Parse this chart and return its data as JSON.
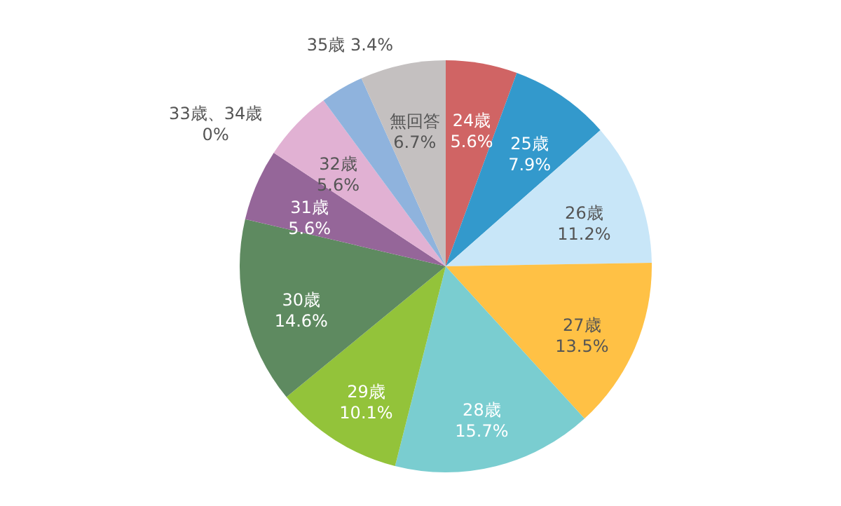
{
  "chart_data": {
    "type": "pie",
    "categories": [
      "24歳",
      "25歳",
      "26歳",
      "27歳",
      "28歳",
      "29歳",
      "30歳",
      "31歳",
      "32歳",
      "33歳、34歳",
      "35歳",
      "無回答"
    ],
    "values": [
      5.6,
      7.9,
      11.2,
      13.5,
      15.7,
      10.1,
      14.6,
      5.6,
      5.6,
      0,
      3.4,
      6.7
    ],
    "value_labels": [
      "5.6%",
      "7.9%",
      "11.2%",
      "13.5%",
      "15.7%",
      "10.1%",
      "14.6%",
      "5.6%",
      "5.6%",
      "0%",
      "3.4%",
      "6.7%"
    ],
    "colors": [
      "#d06464",
      "#3399cc",
      "#c8e6f8",
      "#ffc145",
      "#7acdd0",
      "#93c33a",
      "#5e8a60",
      "#956699",
      "#e1b1d3",
      "#a0a0a0",
      "#8fb3dd",
      "#c4c0c0"
    ]
  }
}
